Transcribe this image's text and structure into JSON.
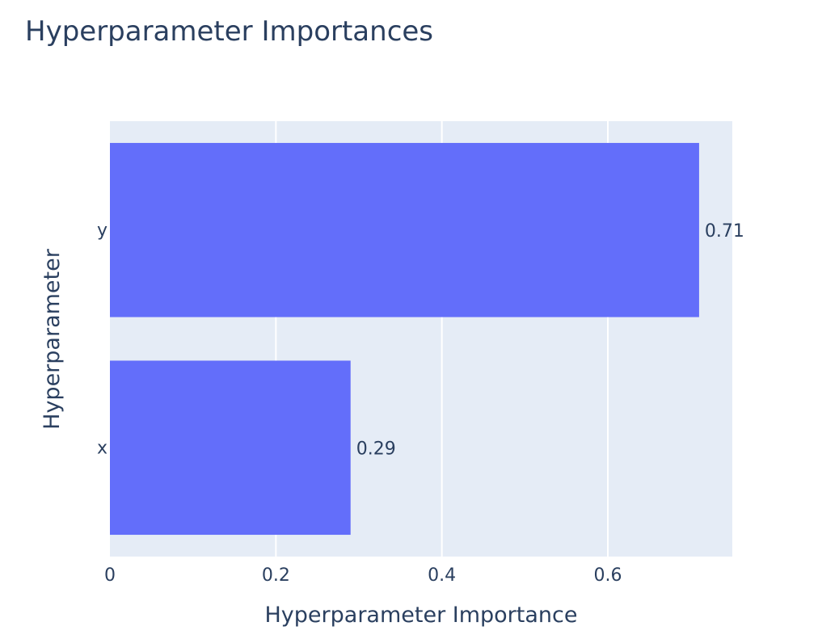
{
  "chart_data": {
    "type": "bar",
    "orientation": "horizontal",
    "title": "Hyperparameter Importances",
    "xlabel": "Hyperparameter Importance",
    "ylabel": "Hyperparameter",
    "categories": [
      "y",
      "x"
    ],
    "values": [
      0.71,
      0.29
    ],
    "data_labels": [
      "0.71",
      "0.29"
    ],
    "xlim": [
      0,
      0.75
    ],
    "x_ticks": [
      0,
      0.2,
      0.4,
      0.6
    ],
    "x_tick_labels": [
      "0",
      "0.2",
      "0.4",
      "0.6"
    ],
    "grid": true,
    "legend": "none",
    "colors": {
      "bar": "#636efa",
      "plot_background": "#e5ecf6",
      "grid": "#ffffff",
      "text": "#2a3f5f"
    }
  }
}
